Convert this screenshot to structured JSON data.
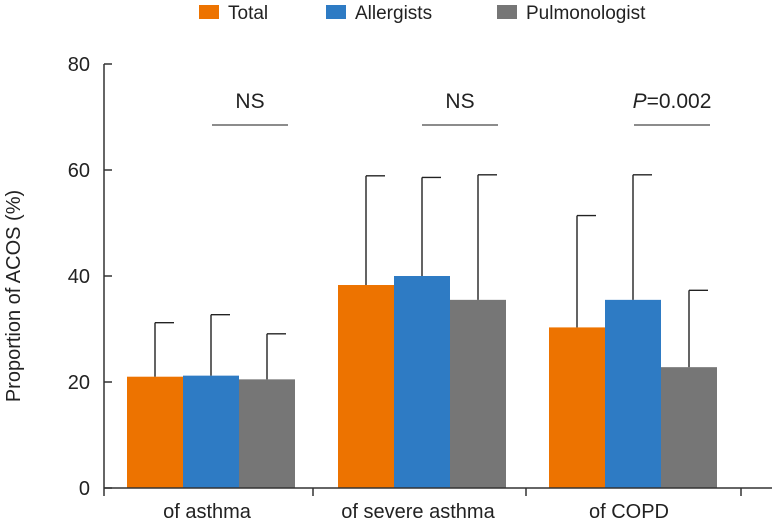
{
  "chart_data": {
    "type": "bar",
    "title": "",
    "xlabel": "",
    "ylabel": "Proportion of ACOS (%)",
    "ylim": [
      0,
      80
    ],
    "yticks": [
      "0",
      "20",
      "40",
      "60",
      "80"
    ],
    "categories": [
      "of asthma",
      "of severe asthma",
      "of COPD"
    ],
    "grid": false,
    "legend_position": "top",
    "series": [
      {
        "name": "Total",
        "color": "#ed7300",
        "values": [
          21.0,
          38.3,
          30.3
        ],
        "error_upper": [
          31.2,
          58.9,
          51.4
        ]
      },
      {
        "name": "Allergists",
        "color": "#2e7bc4",
        "values": [
          21.2,
          40.0,
          35.5
        ],
        "error_upper": [
          32.7,
          58.6,
          59.1
        ]
      },
      {
        "name": "Pulmonologist",
        "color": "#767676",
        "values": [
          20.5,
          35.5,
          22.8
        ],
        "error_upper": [
          29.1,
          59.1,
          37.3
        ]
      }
    ],
    "annotations": [
      {
        "category": "of asthma",
        "prefix": "",
        "text": "NS"
      },
      {
        "category": "of severe asthma",
        "prefix": "",
        "text": "NS"
      },
      {
        "category": "of COPD",
        "prefix": "P",
        "text": "=0.002"
      }
    ]
  }
}
